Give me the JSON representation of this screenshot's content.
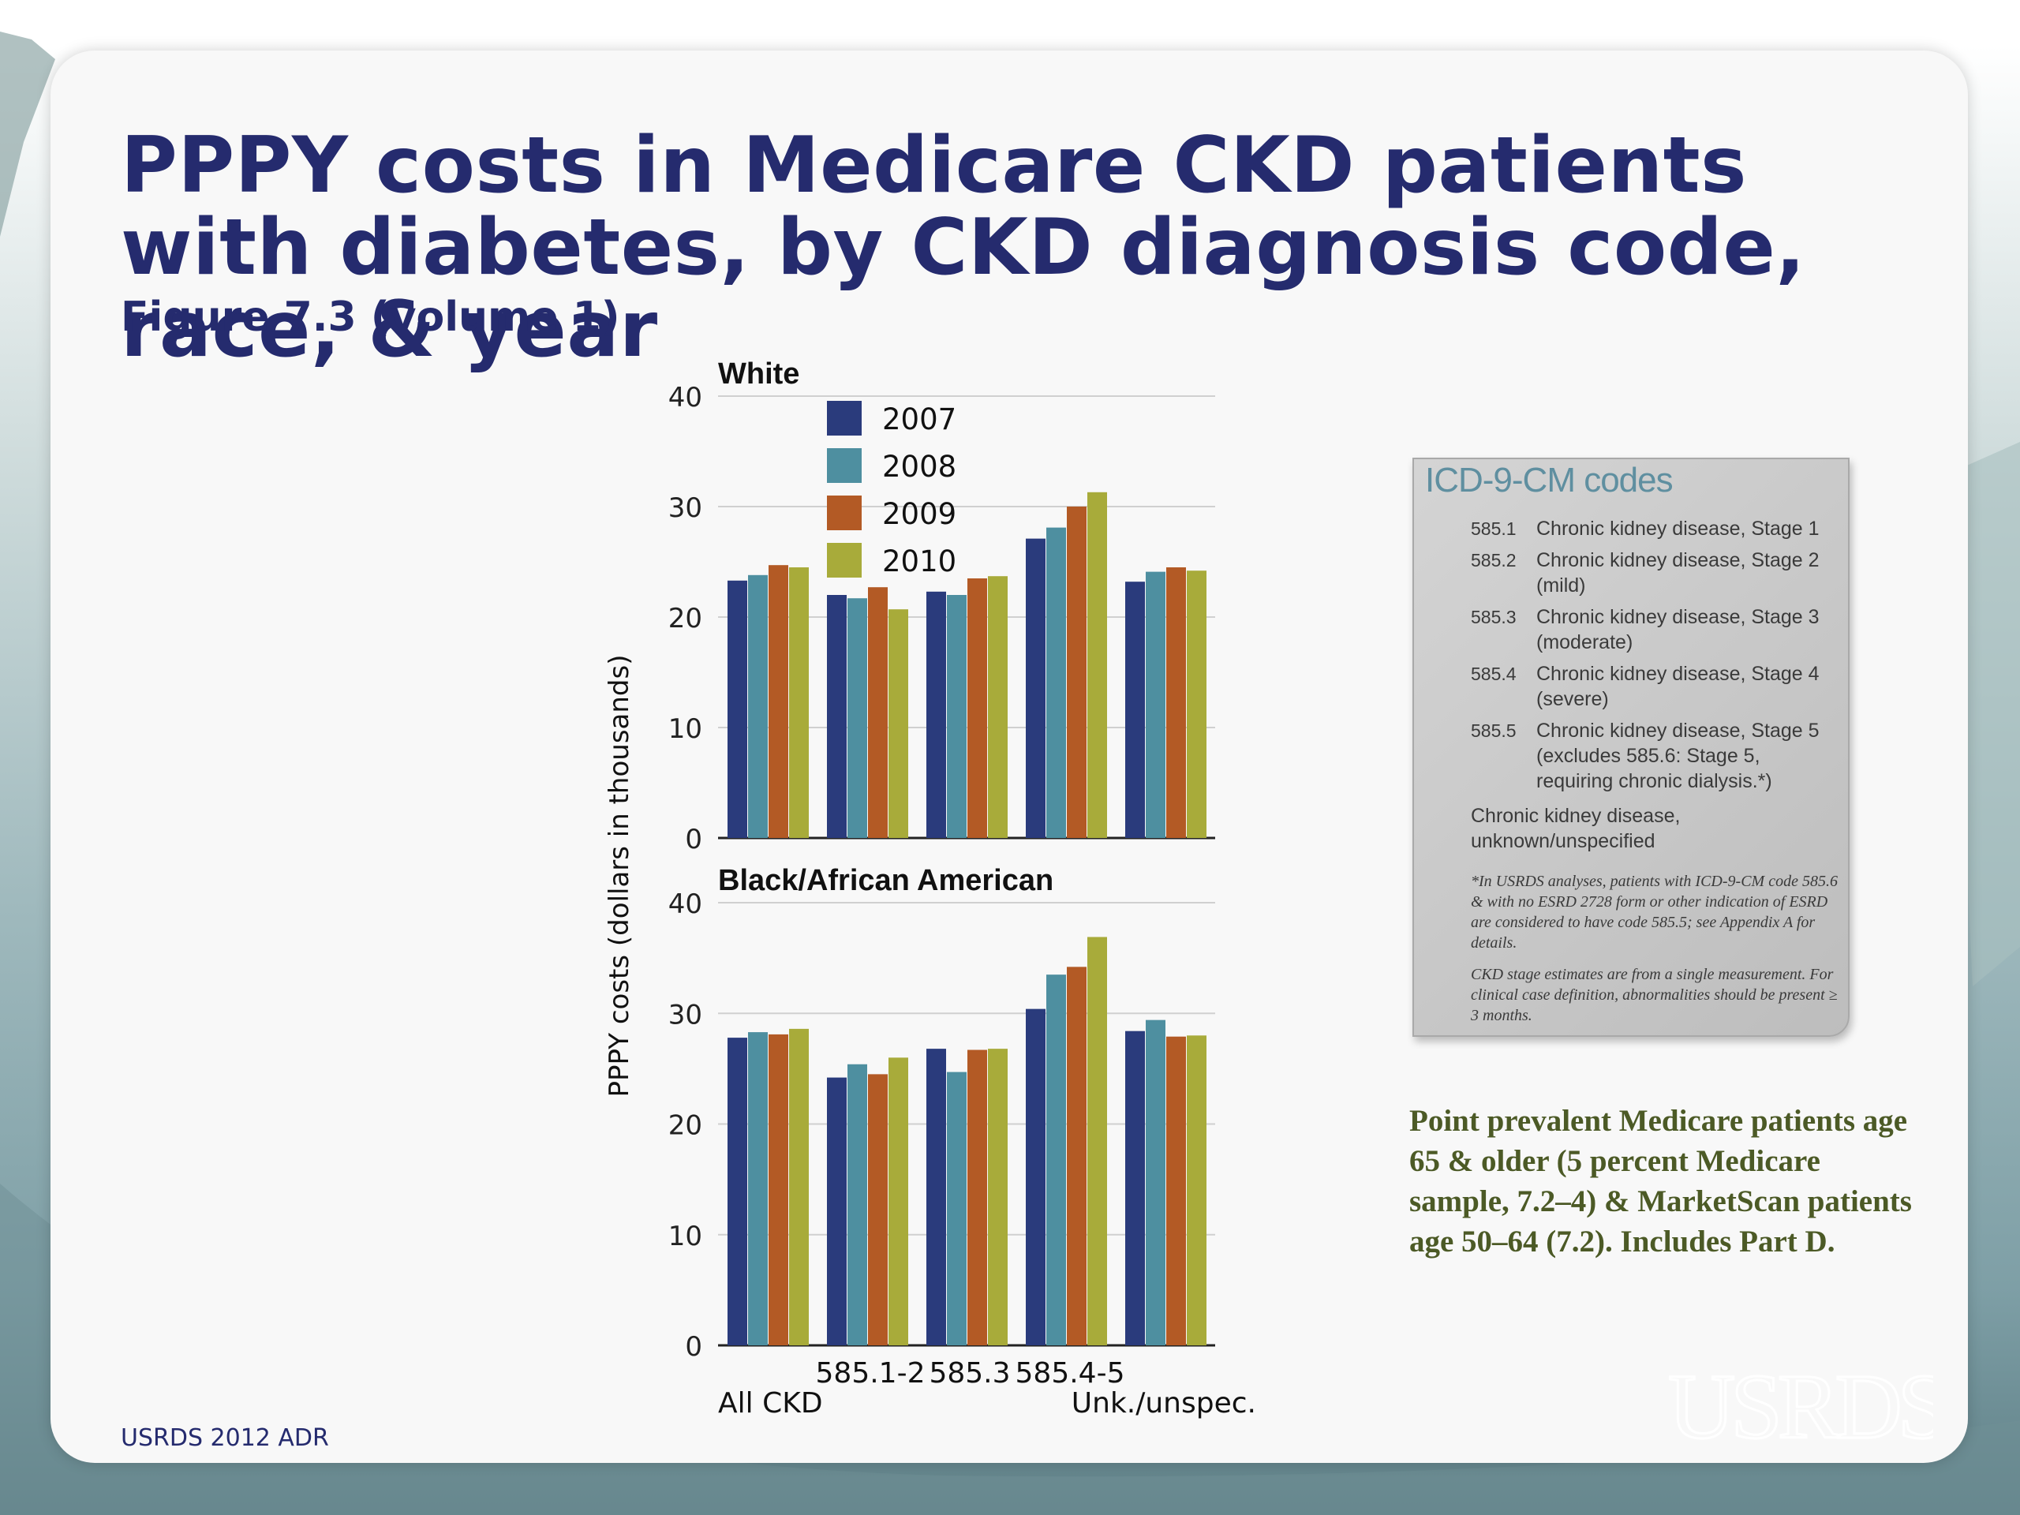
{
  "slide": {
    "title": "PPPY costs in Medicare CKD patients with diabetes, by CKD diagnosis code, race, & year",
    "subtitle": "Figure 7.3 (volume 1)",
    "footer": "USRDS 2012 ADR",
    "side_note": "Point prevalent Medicare patients age 65 & older (5 percent Medicare sample, 7.2–4) & MarketScan patients age 50–64 (7.2). Includes Part D.",
    "logo_text": "USRDS"
  },
  "colors": {
    "title": "#252b6e",
    "series": [
      "#2a3b7c",
      "#4e8fa0",
      "#b35a25",
      "#a8ab3a"
    ]
  },
  "icd_box": {
    "title": "ICD-9-CM codes",
    "rows": [
      {
        "code": "585.1",
        "desc": "Chronic kidney disease, Stage 1"
      },
      {
        "code": "585.2",
        "desc": "Chronic kidney disease, Stage 2 (mild)"
      },
      {
        "code": "585.3",
        "desc": "Chronic kidney disease, Stage 3 (moderate)"
      },
      {
        "code": "585.4",
        "desc": "Chronic kidney disease, Stage 4 (severe)"
      },
      {
        "code": "585.5",
        "desc": "Chronic kidney disease, Stage 5 (excludes 585.6: Stage 5, requiring chronic dialysis.*)"
      }
    ],
    "unspecified": "Chronic kidney disease, unknown/unspecified",
    "note1": "*In USRDS analyses, patients with ICD-9-CM code 585.6 & with no ESRD 2728 form or other indication of ESRD are considered to have code 585.5; see Appendix A for details.",
    "note2": "CKD stage estimates are from a single measurement. For clinical case definition, abnormalities should be present ≥ 3 months."
  },
  "chart_data": [
    {
      "type": "bar",
      "title": "White",
      "ylabel": "PPPY costs (dollars in thousands)",
      "ylim": [
        0,
        40
      ],
      "yticks": [
        0,
        10,
        20,
        30,
        40
      ],
      "categories": [
        "All CKD",
        "585.1-2",
        "585.3",
        "585.4-5",
        "Unk./unspec."
      ],
      "legend_position": "top-center",
      "series": [
        {
          "name": "2007",
          "values": [
            23.3,
            22.0,
            22.3,
            27.1,
            23.2
          ]
        },
        {
          "name": "2008",
          "values": [
            23.8,
            21.7,
            22.0,
            28.1,
            24.1
          ]
        },
        {
          "name": "2009",
          "values": [
            24.7,
            22.7,
            23.5,
            30.0,
            24.5
          ]
        },
        {
          "name": "2010",
          "values": [
            24.5,
            20.7,
            23.7,
            31.3,
            24.2
          ]
        }
      ]
    },
    {
      "type": "bar",
      "title": "Black/African American",
      "ylabel": "PPPY costs (dollars in thousands)",
      "ylim": [
        0,
        40
      ],
      "yticks": [
        0,
        10,
        20,
        30,
        40
      ],
      "categories": [
        "All CKD",
        "585.1-2",
        "585.3",
        "585.4-5",
        "Unk./unspec."
      ],
      "series": [
        {
          "name": "2007",
          "values": [
            27.8,
            24.2,
            26.8,
            30.4,
            28.4
          ]
        },
        {
          "name": "2008",
          "values": [
            28.3,
            25.4,
            24.7,
            33.5,
            29.4
          ]
        },
        {
          "name": "2009",
          "values": [
            28.1,
            24.5,
            26.7,
            34.2,
            27.9
          ]
        },
        {
          "name": "2010",
          "values": [
            28.6,
            26.0,
            26.8,
            36.9,
            28.0
          ]
        }
      ]
    }
  ]
}
